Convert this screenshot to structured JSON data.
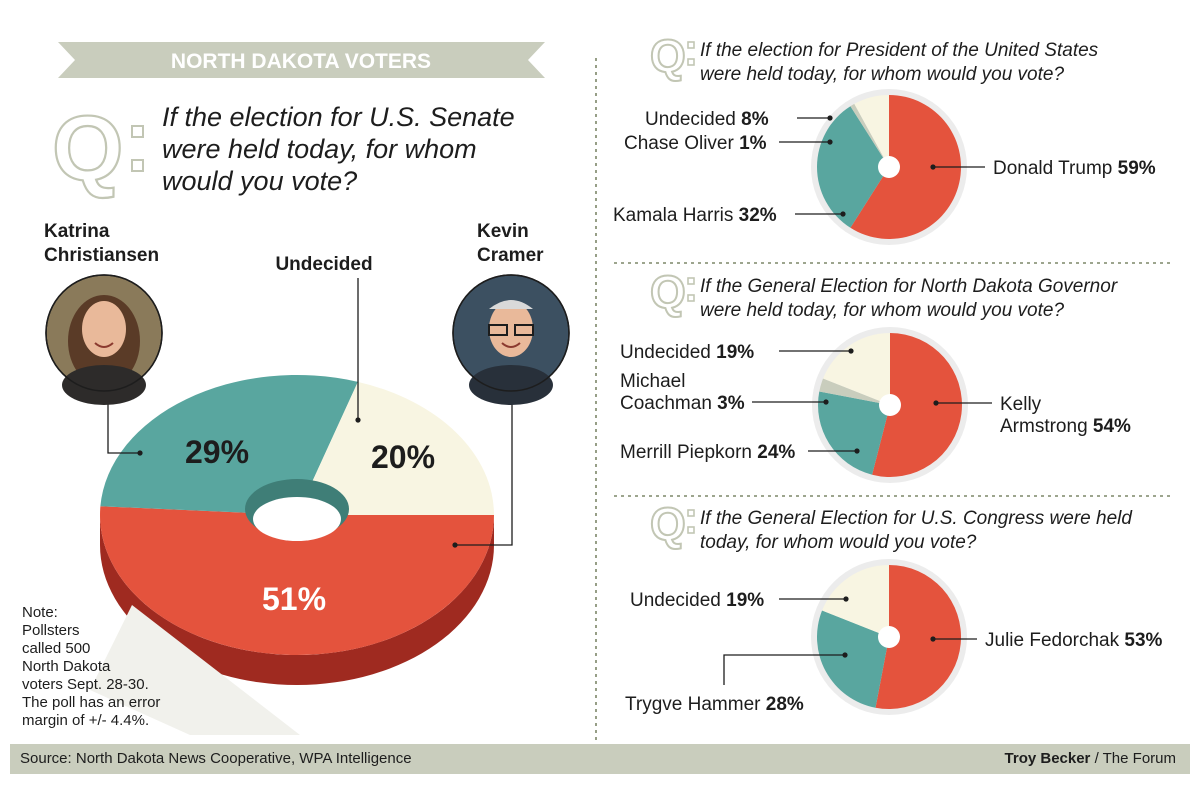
{
  "banner": "NORTH DAKOTA VOTERS",
  "senate": {
    "q_mark": "Q",
    "question_lines": [
      "If the election for U.S. Senate",
      "were held today, for whom",
      "would you vote?"
    ],
    "candidate_left_lines": [
      "Katrina",
      "Christiansen"
    ],
    "candidate_right_lines": [
      "Kevin",
      "Cramer"
    ],
    "undecided_label": "Undecided",
    "photo_left_alt": "Photo of Katrina Christiansen",
    "photo_right_alt": "Photo of Kevin Cramer"
  },
  "note_lines": [
    "Note:",
    "Pollsters",
    "called 500",
    "North Dakota",
    "voters Sept. 28-30.",
    "The poll has an error",
    "margin of +/- 4.4%."
  ],
  "source": "Source: North Dakota News Cooperative, WPA Intelligence",
  "credit_name": "Troy Becker",
  "credit_org": " / The Forum",
  "colors": {
    "red": "#e4533d",
    "red_dark": "#9f2a20",
    "teal": "#59a69f",
    "cream": "#f8f5e2",
    "olive": "#c9cdbd",
    "olive_dark": "#7d8769",
    "q_gray": "#c2c6b4"
  },
  "chart_data": [
    {
      "type": "pie",
      "title": "If the election for U.S. Senate were held today, for whom would you vote?",
      "slices": [
        {
          "name": "Kevin Cramer",
          "value": 51,
          "label": "51%"
        },
        {
          "name": "Katrina Christiansen",
          "value": 29,
          "label": "29%"
        },
        {
          "name": "Undecided",
          "value": 20,
          "label": "20%"
        }
      ]
    },
    {
      "type": "pie",
      "title": "If the election for President of the United States were held today, for whom would you vote?",
      "title_lines": [
        "If the election for President of the United States",
        "were held today, for whom would you vote?"
      ],
      "slices": [
        {
          "name": "Donald Trump",
          "value": 59,
          "label": "59%",
          "label_lines": [
            "Donald Trump"
          ]
        },
        {
          "name": "Kamala Harris",
          "value": 32,
          "label": "32%",
          "label_lines": [
            "Kamala Harris"
          ]
        },
        {
          "name": "Chase Oliver",
          "value": 1,
          "label": "1%",
          "label_lines": [
            "Chase Oliver"
          ]
        },
        {
          "name": "Undecided",
          "value": 8,
          "label": "8%",
          "label_lines": [
            "Undecided"
          ]
        }
      ]
    },
    {
      "type": "pie",
      "title": "If the General Election for North Dakota Governor were held today, for whom would you vote?",
      "title_lines": [
        "If the General Election for North Dakota Governor",
        "were held today, for whom would you vote?"
      ],
      "slices": [
        {
          "name": "Kelly Armstrong",
          "value": 54,
          "label": "54%",
          "label_lines": [
            "Kelly",
            "Armstrong"
          ]
        },
        {
          "name": "Merrill Piepkorn",
          "value": 24,
          "label": "24%",
          "label_lines": [
            "Merrill Piepkorn"
          ]
        },
        {
          "name": "Michael Coachman",
          "value": 3,
          "label": "3%",
          "label_lines": [
            "Michael",
            "Coachman"
          ]
        },
        {
          "name": "Undecided",
          "value": 19,
          "label": "19%",
          "label_lines": [
            "Undecided"
          ]
        }
      ]
    },
    {
      "type": "pie",
      "title": "If the General Election for U.S. Congress were held today, for whom would you vote?",
      "title_lines": [
        "If the General Election for U.S. Congress were held",
        "today, for whom would you vote?"
      ],
      "slices": [
        {
          "name": "Julie Fedorchak",
          "value": 53,
          "label": "53%",
          "label_lines": [
            "Julie Fedorchak"
          ]
        },
        {
          "name": "Trygve Hammer",
          "value": 28,
          "label": "28%",
          "label_lines": [
            "Trygve Hammer"
          ]
        },
        {
          "name": "Undecided",
          "value": 19,
          "label": "19%",
          "label_lines": [
            "Undecided"
          ]
        }
      ]
    }
  ]
}
